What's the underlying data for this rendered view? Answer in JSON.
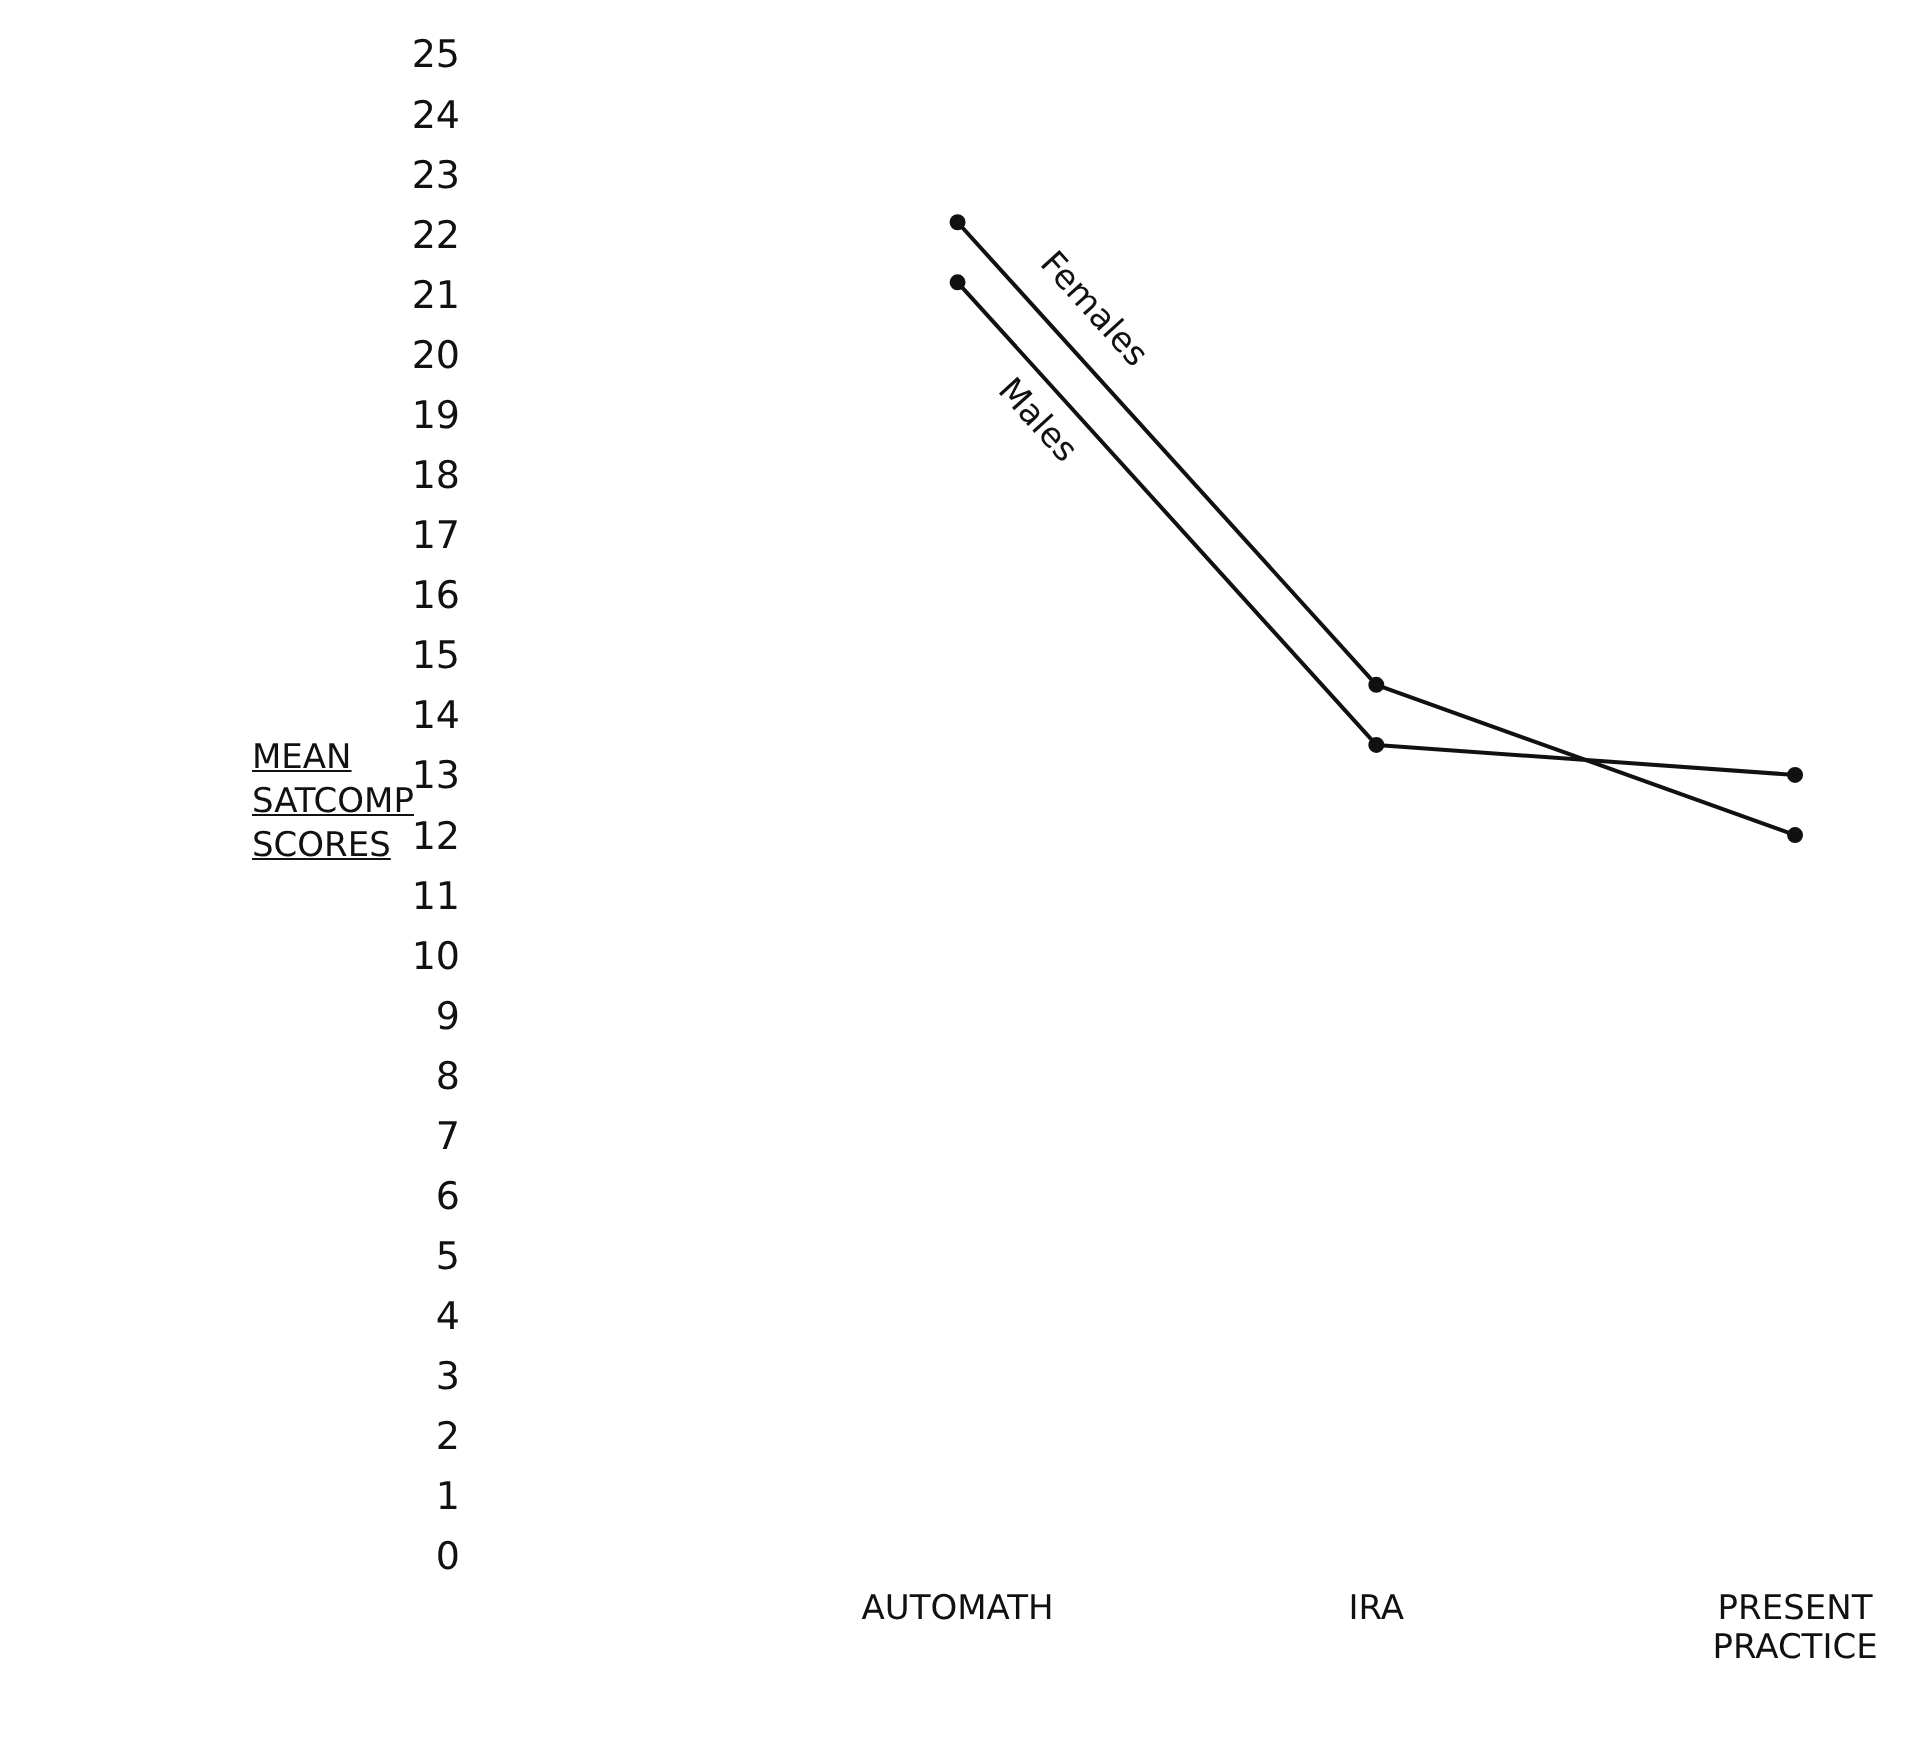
{
  "chart_data": {
    "type": "line",
    "ylabel": "MEAN SATCOMP SCORES",
    "categories": [
      "AUTOMATH",
      "IRA",
      "PRESENT PRACTICE"
    ],
    "series": [
      {
        "name": "Females",
        "color": "#111111",
        "values": [
          22.2,
          14.5,
          12.0
        ]
      },
      {
        "name": "Males",
        "color": "#111111",
        "values": [
          21.2,
          13.5,
          13.0
        ]
      }
    ],
    "ylim": [
      0,
      25
    ],
    "yticks": [
      0,
      1,
      2,
      3,
      4,
      5,
      6,
      7,
      8,
      9,
      10,
      11,
      12,
      13,
      14,
      15,
      16,
      17,
      18,
      19,
      20,
      21,
      22,
      23,
      24,
      25
    ],
    "grid": false,
    "legend": false,
    "marker": "circle",
    "line_style": "solid"
  }
}
